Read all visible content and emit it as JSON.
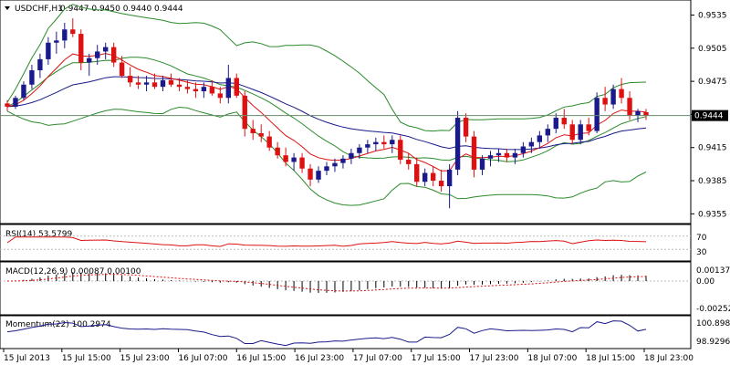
{
  "header": {
    "symbol_label": "USDCHF,H1",
    "ohlc_label": "0.9447 0.9450 0.9440 0.9444",
    "collapse_icon": "triangle-down-icon"
  },
  "price_panel": {
    "y_ticks": [
      "0.9535",
      "0.9505",
      "0.9475",
      "0.9445",
      "0.9415",
      "0.9385",
      "0.9355"
    ],
    "y_tick_values": [
      0.9535,
      0.9505,
      0.9475,
      0.9445,
      0.9415,
      0.9385,
      0.9355
    ],
    "current_price_label": "0.9444",
    "current_price": 0.9444
  },
  "rsi_panel": {
    "label": "RSI(14) 53.5799",
    "levels": [
      "70",
      "30"
    ]
  },
  "macd_panel": {
    "label": "MACD(12,26,9) 0.00087 0.00100",
    "y_ticks": [
      "0.00137",
      "0.00",
      "-0.00252"
    ]
  },
  "momentum_panel": {
    "label": "Momentum(22) 100.2974",
    "y_ticks": [
      "100.8988",
      "98.9296"
    ]
  },
  "x_axis": {
    "labels": [
      "15 Jul 2013",
      "15 Jul 15:00",
      "15 Jul 23:00",
      "16 Jul 07:00",
      "16 Jul 15:00",
      "16 Jul 23:00",
      "17 Jul 07:00",
      "17 Jul 15:00",
      "17 Jul 23:00",
      "18 Jul 07:00",
      "18 Jul 15:00",
      "18 Jul 23:00"
    ]
  },
  "colors": {
    "bull": "#1a1a8c",
    "bear": "#dd1111",
    "bollinger": "#2a8a2a",
    "ema_fast": "#dd1111",
    "ema_slow": "#1a1a8c",
    "ema_mid": "#2a8a2a",
    "grid": "#bbbbbb"
  },
  "chart_data": {
    "type": "candlestick",
    "timeframe": "H1",
    "candles": [
      [
        0.9455,
        0.9458,
        0.9448,
        0.9452
      ],
      [
        0.9452,
        0.9462,
        0.945,
        0.946
      ],
      [
        0.946,
        0.9475,
        0.9458,
        0.9472
      ],
      [
        0.9472,
        0.949,
        0.9468,
        0.9485
      ],
      [
        0.9485,
        0.95,
        0.9478,
        0.9495
      ],
      [
        0.9495,
        0.9515,
        0.949,
        0.951
      ],
      [
        0.951,
        0.952,
        0.95,
        0.9512
      ],
      [
        0.9512,
        0.9528,
        0.9505,
        0.9522
      ],
      [
        0.9522,
        0.9532,
        0.9515,
        0.9518
      ],
      [
        0.9518,
        0.9522,
        0.9485,
        0.9492
      ],
      [
        0.9492,
        0.95,
        0.948,
        0.9496
      ],
      [
        0.9496,
        0.9508,
        0.949,
        0.9502
      ],
      [
        0.9502,
        0.951,
        0.9495,
        0.9506
      ],
      [
        0.9506,
        0.951,
        0.9488,
        0.9492
      ],
      [
        0.9492,
        0.9498,
        0.9478,
        0.948
      ],
      [
        0.948,
        0.9488,
        0.947,
        0.9474
      ],
      [
        0.9474,
        0.948,
        0.9468,
        0.9472
      ],
      [
        0.9472,
        0.948,
        0.9466,
        0.9474
      ],
      [
        0.9474,
        0.9482,
        0.9468,
        0.947
      ],
      [
        0.947,
        0.948,
        0.9466,
        0.9476
      ],
      [
        0.9476,
        0.9482,
        0.947,
        0.9472
      ],
      [
        0.9472,
        0.9478,
        0.9466,
        0.947
      ],
      [
        0.947,
        0.9476,
        0.9464,
        0.9468
      ],
      [
        0.9468,
        0.9474,
        0.946,
        0.9466
      ],
      [
        0.9466,
        0.9474,
        0.946,
        0.947
      ],
      [
        0.947,
        0.9476,
        0.9462,
        0.9464
      ],
      [
        0.9464,
        0.947,
        0.9455,
        0.946
      ],
      [
        0.946,
        0.949,
        0.9455,
        0.9478
      ],
      [
        0.9478,
        0.9482,
        0.946,
        0.9462
      ],
      [
        0.9462,
        0.9466,
        0.9425,
        0.9432
      ],
      [
        0.9432,
        0.944,
        0.9422,
        0.9428
      ],
      [
        0.9428,
        0.9436,
        0.942,
        0.9425
      ],
      [
        0.9425,
        0.943,
        0.9412,
        0.9415
      ],
      [
        0.9415,
        0.942,
        0.9405,
        0.9408
      ],
      [
        0.9408,
        0.9415,
        0.9398,
        0.9402
      ],
      [
        0.9402,
        0.941,
        0.9394,
        0.9406
      ],
      [
        0.9406,
        0.941,
        0.9392,
        0.9396
      ],
      [
        0.9396,
        0.94,
        0.938,
        0.9386
      ],
      [
        0.9386,
        0.9398,
        0.9383,
        0.9394
      ],
      [
        0.9394,
        0.9402,
        0.939,
        0.9398
      ],
      [
        0.9398,
        0.9405,
        0.9393,
        0.9401
      ],
      [
        0.9401,
        0.9408,
        0.9396,
        0.9405
      ],
      [
        0.9405,
        0.9414,
        0.94,
        0.941
      ],
      [
        0.941,
        0.9418,
        0.9405,
        0.9415
      ],
      [
        0.9415,
        0.9422,
        0.941,
        0.9418
      ],
      [
        0.9418,
        0.9424,
        0.9412,
        0.942
      ],
      [
        0.942,
        0.9426,
        0.9414,
        0.9418
      ],
      [
        0.9418,
        0.9426,
        0.941,
        0.9422
      ],
      [
        0.9422,
        0.9426,
        0.94,
        0.9404
      ],
      [
        0.9404,
        0.941,
        0.9395,
        0.94
      ],
      [
        0.94,
        0.9406,
        0.938,
        0.9384
      ],
      [
        0.9384,
        0.9396,
        0.938,
        0.9392
      ],
      [
        0.9392,
        0.9398,
        0.938,
        0.9385
      ],
      [
        0.9385,
        0.9395,
        0.9375,
        0.938
      ],
      [
        0.938,
        0.94,
        0.936,
        0.9395
      ],
      [
        0.9395,
        0.9448,
        0.939,
        0.9442
      ],
      [
        0.9442,
        0.9446,
        0.942,
        0.9425
      ],
      [
        0.9425,
        0.943,
        0.9388,
        0.9395
      ],
      [
        0.9395,
        0.9408,
        0.939,
        0.9405
      ],
      [
        0.9405,
        0.9412,
        0.9398,
        0.9408
      ],
      [
        0.9408,
        0.9414,
        0.9402,
        0.941
      ],
      [
        0.941,
        0.9414,
        0.9402,
        0.9406
      ],
      [
        0.9406,
        0.9414,
        0.94,
        0.941
      ],
      [
        0.941,
        0.942,
        0.9406,
        0.9416
      ],
      [
        0.9416,
        0.9424,
        0.941,
        0.942
      ],
      [
        0.942,
        0.943,
        0.9414,
        0.9426
      ],
      [
        0.9426,
        0.9436,
        0.942,
        0.9432
      ],
      [
        0.9432,
        0.9446,
        0.9428,
        0.9442
      ],
      [
        0.9442,
        0.945,
        0.9432,
        0.9436
      ],
      [
        0.9436,
        0.944,
        0.9418,
        0.9422
      ],
      [
        0.9422,
        0.944,
        0.9418,
        0.9436
      ],
      [
        0.9436,
        0.9442,
        0.9426,
        0.943
      ],
      [
        0.943,
        0.9465,
        0.9428,
        0.946
      ],
      [
        0.946,
        0.947,
        0.9448,
        0.9454
      ],
      [
        0.9454,
        0.9472,
        0.945,
        0.9468
      ],
      [
        0.9468,
        0.9478,
        0.9455,
        0.946
      ],
      [
        0.946,
        0.9466,
        0.944,
        0.9444
      ],
      [
        0.9444,
        0.945,
        0.9438,
        0.9448
      ],
      [
        0.9447,
        0.945,
        0.944,
        0.9444
      ]
    ]
  }
}
